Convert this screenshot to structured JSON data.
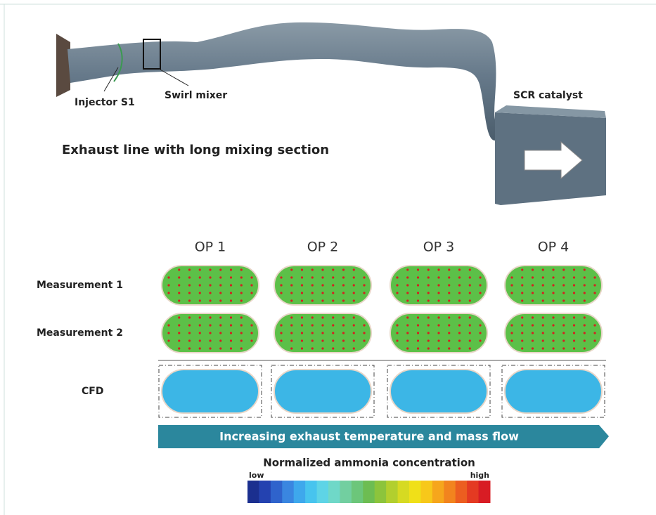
{
  "diagram": {
    "labels": {
      "injector": "Injector S1",
      "mixer": "Swirl mixer",
      "catalyst": "SCR catalyst"
    },
    "caption": "Exhaust line with long mixing section"
  },
  "grid": {
    "columns": [
      "OP 1",
      "OP 2",
      "OP 3",
      "OP 4"
    ],
    "rows": [
      "Measurement 1",
      "Measurement 2",
      "CFD"
    ]
  },
  "arrow": "Increasing exhaust temperature and mass flow",
  "legend": {
    "title": "Normalized ammonia concentration",
    "low": "low",
    "high": "high"
  }
}
